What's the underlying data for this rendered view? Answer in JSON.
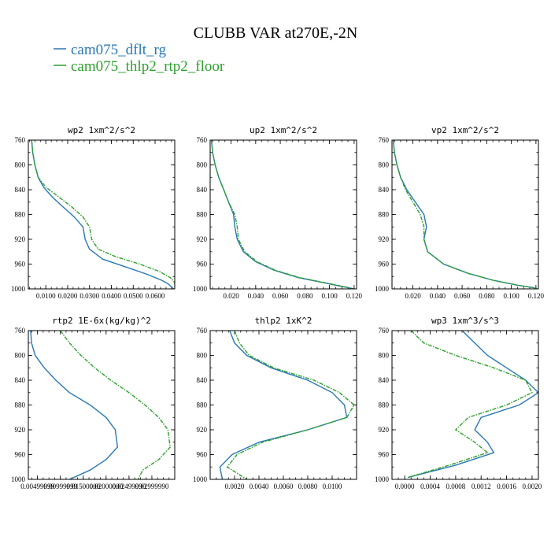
{
  "figure": {
    "title": "CLUBB VAR at270E,-2N",
    "legend": [
      {
        "label": "cam075_dflt_rg",
        "color": "#2878b5"
      },
      {
        "label": "cam075_thlp2_rtp2_floor",
        "color": "#2ca02c"
      }
    ]
  },
  "chart_data": [
    {
      "type": "line",
      "title": "wp2  1xm^2/s^2",
      "xlim": [
        0.002,
        0.069
      ],
      "ylim": [
        760,
        1000
      ],
      "y_inverted": true,
      "xticks": [
        0.01,
        0.02,
        0.03,
        0.04,
        0.05,
        0.06
      ],
      "xtick_labels": [
        "0.0100",
        "0.0200",
        "0.0300",
        "0.0400",
        "0.0500",
        "0.0600"
      ],
      "yticks": [
        760,
        800,
        840,
        880,
        920,
        960,
        1000
      ],
      "ytick_labels": [
        "760",
        "800",
        "840",
        "880",
        "920",
        "960",
        "1000"
      ],
      "series": [
        {
          "name": "cam075_dflt_rg",
          "color": "#2878b5",
          "dashed": false,
          "x": [
            0.0035,
            0.004,
            0.005,
            0.0065,
            0.009,
            0.013,
            0.018,
            0.023,
            0.027,
            0.028,
            0.03,
            0.036,
            0.046,
            0.056,
            0.063,
            0.066,
            0.0685
          ],
          "y": [
            760,
            780,
            800,
            820,
            836,
            852,
            868,
            884,
            900,
            920,
            936,
            952,
            964,
            976,
            986,
            992,
            1000
          ]
        },
        {
          "name": "cam075_thlp2_rtp2_floor",
          "color": "#2ca02c",
          "dashed": true,
          "x": [
            0.0035,
            0.004,
            0.005,
            0.0065,
            0.01,
            0.016,
            0.022,
            0.027,
            0.03,
            0.031,
            0.034,
            0.042,
            0.053,
            0.062,
            0.067,
            0.069,
            0.069
          ],
          "y": [
            760,
            780,
            800,
            820,
            836,
            852,
            868,
            884,
            900,
            920,
            936,
            948,
            960,
            972,
            982,
            990,
            1000
          ]
        }
      ]
    },
    {
      "type": "line",
      "title": "up2  1xm^2/s^2",
      "xlim": [
        0.003,
        0.122
      ],
      "ylim": [
        760,
        1000
      ],
      "y_inverted": true,
      "xticks": [
        0.02,
        0.04,
        0.06,
        0.08,
        0.1,
        0.12
      ],
      "xtick_labels": [
        "0.020",
        "0.040",
        "0.060",
        "0.080",
        "0.100",
        "0.120"
      ],
      "yticks": [
        760,
        800,
        840,
        880,
        920,
        960,
        1000
      ],
      "ytick_labels": [
        "760",
        "800",
        "840",
        "880",
        "920",
        "960",
        "1000"
      ],
      "series": [
        {
          "name": "cam075_dflt_rg",
          "color": "#2878b5",
          "dashed": false,
          "x": [
            0.004,
            0.005,
            0.007,
            0.01,
            0.014,
            0.018,
            0.022,
            0.023,
            0.025,
            0.03,
            0.04,
            0.055,
            0.075,
            0.095,
            0.11,
            0.12
          ],
          "y": [
            760,
            780,
            800,
            820,
            840,
            860,
            880,
            900,
            920,
            940,
            956,
            970,
            982,
            990,
            996,
            1000
          ]
        },
        {
          "name": "cam075_thlp2_rtp2_floor",
          "color": "#2ca02c",
          "dashed": true,
          "x": [
            0.004,
            0.005,
            0.007,
            0.01,
            0.014,
            0.018,
            0.023,
            0.025,
            0.026,
            0.031,
            0.041,
            0.056,
            0.076,
            0.096,
            0.111,
            0.12
          ],
          "y": [
            760,
            780,
            800,
            820,
            840,
            860,
            880,
            900,
            920,
            940,
            956,
            970,
            982,
            990,
            996,
            1000
          ]
        }
      ]
    },
    {
      "type": "line",
      "title": "vp2  1xm^2/s^2",
      "xlim": [
        0.003,
        0.122
      ],
      "ylim": [
        760,
        1000
      ],
      "y_inverted": true,
      "xticks": [
        0.02,
        0.04,
        0.06,
        0.08,
        0.1,
        0.12
      ],
      "xtick_labels": [
        "0.020",
        "0.040",
        "0.060",
        "0.080",
        "0.100",
        "0.120"
      ],
      "yticks": [
        760,
        800,
        840,
        880,
        920,
        960,
        1000
      ],
      "ytick_labels": [
        "760",
        "800",
        "840",
        "880",
        "920",
        "960",
        "1000"
      ],
      "series": [
        {
          "name": "cam075_dflt_rg",
          "color": "#2878b5",
          "dashed": false,
          "x": [
            0.004,
            0.005,
            0.007,
            0.01,
            0.015,
            0.022,
            0.029,
            0.031,
            0.029,
            0.032,
            0.045,
            0.065,
            0.085,
            0.105,
            0.118,
            0.121
          ],
          "y": [
            760,
            780,
            800,
            820,
            840,
            860,
            880,
            900,
            920,
            940,
            960,
            975,
            986,
            994,
            998,
            1000
          ]
        },
        {
          "name": "cam075_thlp2_rtp2_floor",
          "color": "#2ca02c",
          "dashed": true,
          "x": [
            0.004,
            0.005,
            0.007,
            0.01,
            0.014,
            0.02,
            0.026,
            0.029,
            0.029,
            0.032,
            0.045,
            0.065,
            0.085,
            0.105,
            0.118,
            0.121
          ],
          "y": [
            760,
            780,
            800,
            820,
            840,
            860,
            880,
            900,
            920,
            940,
            960,
            975,
            986,
            994,
            998,
            1000
          ]
        }
      ]
    },
    {
      "type": "line",
      "title": "rtp2  1E-6x(kg/kg)^2",
      "xlim": [
        0.003,
        0.035
      ],
      "ylim": [
        760,
        1000
      ],
      "y_inverted": true,
      "xticks": [
        0.005,
        0.01,
        0.015,
        0.02,
        0.025,
        0.03
      ],
      "xtick_labels": [
        "0.00499999",
        "0.00999999",
        "0.01500000",
        "0.02000000",
        "0.02499990",
        "0.02999990"
      ],
      "yticks": [
        760,
        800,
        840,
        880,
        920,
        960,
        1000
      ],
      "ytick_labels": [
        "760",
        "800",
        "840",
        "880",
        "920",
        "960",
        "1000"
      ],
      "series": [
        {
          "name": "cam075_dflt_rg",
          "color": "#2878b5",
          "dashed": false,
          "x": [
            0.0035,
            0.0037,
            0.0045,
            0.0065,
            0.009,
            0.012,
            0.0165,
            0.02,
            0.022,
            0.0225,
            0.02,
            0.0165,
            0.012
          ],
          "y": [
            760,
            780,
            800,
            820,
            840,
            860,
            880,
            900,
            920,
            948,
            968,
            985,
            1000
          ]
        },
        {
          "name": "cam075_thlp2_rtp2_floor",
          "color": "#2ca02c",
          "dashed": true,
          "x": [
            0.01,
            0.012,
            0.0145,
            0.0175,
            0.021,
            0.025,
            0.0285,
            0.0315,
            0.0335,
            0.034,
            0.0315,
            0.028,
            0.027
          ],
          "y": [
            760,
            780,
            800,
            820,
            840,
            860,
            880,
            900,
            920,
            948,
            968,
            985,
            1000
          ]
        }
      ]
    },
    {
      "type": "line",
      "title": "thlp2  1xK^2",
      "xlim": [
        0.0,
        0.012
      ],
      "ylim": [
        760,
        1000
      ],
      "y_inverted": true,
      "xticks": [
        0.002,
        0.004,
        0.006,
        0.008,
        0.01
      ],
      "xtick_labels": [
        "0.0020",
        "0.0040",
        "0.0060",
        "0.0080",
        "0.0100"
      ],
      "yticks": [
        760,
        800,
        840,
        880,
        920,
        960,
        1000
      ],
      "ytick_labels": [
        "760",
        "800",
        "840",
        "880",
        "920",
        "960",
        "1000"
      ],
      "series": [
        {
          "name": "cam075_dflt_rg",
          "color": "#2878b5",
          "dashed": false,
          "x": [
            0.0016,
            0.002,
            0.003,
            0.005,
            0.008,
            0.01,
            0.011,
            0.0112,
            0.008,
            0.004,
            0.0018,
            0.0008,
            0.001
          ],
          "y": [
            760,
            780,
            800,
            820,
            840,
            860,
            880,
            900,
            920,
            940,
            960,
            980,
            1000
          ]
        },
        {
          "name": "cam075_thlp2_rtp2_floor",
          "color": "#2ca02c",
          "dashed": true,
          "x": [
            0.002,
            0.0024,
            0.0032,
            0.0052,
            0.0085,
            0.0106,
            0.0118,
            0.0112,
            0.008,
            0.0043,
            0.0022,
            0.0014,
            0.003
          ],
          "y": [
            760,
            780,
            800,
            820,
            840,
            860,
            880,
            900,
            920,
            940,
            960,
            980,
            1000
          ]
        }
      ]
    },
    {
      "type": "line",
      "title": "wp3  1xm^3/s^3",
      "xlim": [
        -0.0002,
        0.0021
      ],
      "ylim": [
        760,
        1000
      ],
      "y_inverted": true,
      "xticks": [
        0.0,
        0.0004,
        0.0008,
        0.0012,
        0.0016,
        0.002
      ],
      "xtick_labels": [
        "0.0000",
        "0.0004",
        "0.0008",
        "0.0012",
        "0.0016",
        "0.0020"
      ],
      "yticks": [
        760,
        800,
        840,
        880,
        920,
        960,
        1000
      ],
      "ytick_labels": [
        "760",
        "800",
        "840",
        "880",
        "920",
        "960",
        "1000"
      ],
      "series": [
        {
          "name": "cam075_dflt_rg",
          "color": "#2878b5",
          "dashed": false,
          "x": [
            0.0009,
            0.0011,
            0.0013,
            0.0016,
            0.0019,
            0.0021,
            0.0018,
            0.0012,
            0.0011,
            0.0013,
            0.0014,
            0.0008,
            5e-05
          ],
          "y": [
            760,
            780,
            800,
            820,
            840,
            860,
            880,
            900,
            920,
            940,
            957,
            977,
            997
          ]
        },
        {
          "name": "cam075_thlp2_rtp2_floor",
          "color": "#2ca02c",
          "dashed": true,
          "x": [
            0.0001,
            0.0003,
            0.0008,
            0.0014,
            0.0019,
            0.002,
            0.0016,
            0.001,
            0.0008,
            0.0011,
            0.0013,
            0.0007,
            5e-05
          ],
          "y": [
            760,
            780,
            800,
            820,
            840,
            860,
            880,
            900,
            920,
            940,
            957,
            977,
            997
          ]
        }
      ]
    }
  ]
}
